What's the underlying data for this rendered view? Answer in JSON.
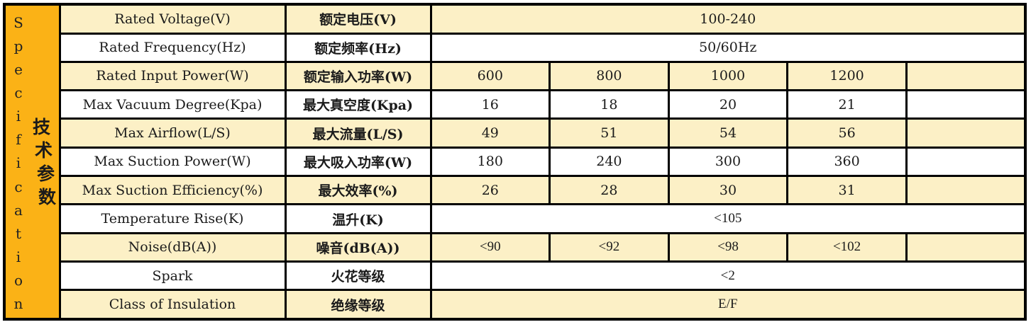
{
  "sidebar": {
    "vertical_label_en": "Specification",
    "vertical_label_zh": "技术参数",
    "bg_color": "#fbb216"
  },
  "colors": {
    "row_alt": "#fcf0c6",
    "row_plain": "#ffffff",
    "border": "#000000"
  },
  "table": {
    "rows": [
      {
        "en": "Rated Voltage(V)",
        "zh": "额定电压(V)",
        "span": "100-240"
      },
      {
        "en": "Rated Frequency(Hz)",
        "zh": "额定频率(Hz)",
        "span": "50/60Hz"
      },
      {
        "en": "Rated Input Power(W)",
        "zh": "额定输入功率(W)",
        "values": [
          "600",
          "800",
          "1000",
          "1200",
          ""
        ]
      },
      {
        "en": "Max Vacuum Degree(Kpa)",
        "zh": "最大真空度(Kpa)",
        "values": [
          "16",
          "18",
          "20",
          "21",
          ""
        ]
      },
      {
        "en": "Max Airflow(L/S)",
        "zh": "最大流量(L/S)",
        "values": [
          "49",
          "51",
          "54",
          "56",
          ""
        ]
      },
      {
        "en": "Max Suction Power(W)",
        "zh": "最大吸入功率(W)",
        "values": [
          "180",
          "240",
          "300",
          "360",
          ""
        ]
      },
      {
        "en": "Max Suction Efficiency(%)",
        "zh": "最大效率(%)",
        "values": [
          "26",
          "28",
          "30",
          "31",
          ""
        ]
      },
      {
        "en": "Temperature Rise(K)",
        "zh": "温升(K)",
        "span": "<105"
      },
      {
        "en": "Noise(dB(A))",
        "zh": "噪音(dB(A))",
        "values": [
          "<90",
          "<92",
          "<98",
          "<102",
          ""
        ]
      },
      {
        "en": "Spark",
        "zh": "火花等级",
        "span": "<2"
      },
      {
        "en": "Class of Insulation",
        "zh": "绝缘等级",
        "span": "E/F"
      }
    ]
  }
}
